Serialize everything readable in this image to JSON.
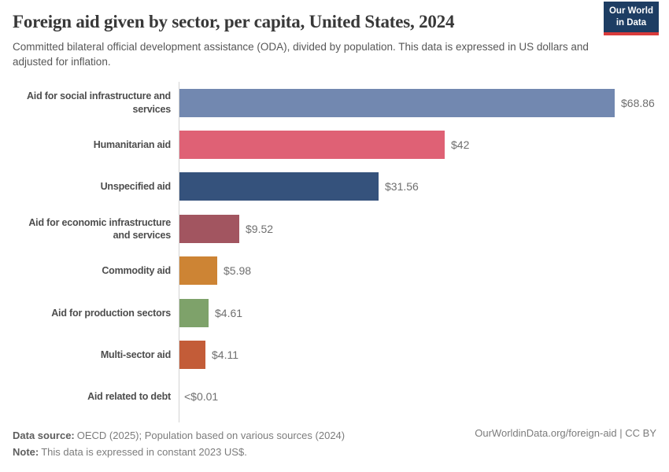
{
  "header": {
    "title": "Foreign aid given by sector, per capita, United States, 2024",
    "subtitle": "Committed bilateral official development assistance (ODA), divided by population. This data is expressed in US dollars and adjusted for inflation.",
    "logo": {
      "line1": "Our World",
      "line2": "in Data",
      "bg_color": "#1d3d63",
      "accent_color": "#d93b3b"
    }
  },
  "chart_data": {
    "type": "bar",
    "orientation": "horizontal",
    "title": "Foreign aid given by sector, per capita, United States, 2024",
    "unit": "US dollars per capita (constant 2023 US$)",
    "categories": [
      "Aid for social infrastructure and services",
      "Humanitarian aid",
      "Unspecified aid",
      "Aid for economic infrastructure and services",
      "Commodity aid",
      "Aid for production sectors",
      "Multi-sector aid",
      "Aid related to debt"
    ],
    "values": [
      68.86,
      42,
      31.56,
      9.52,
      5.98,
      4.61,
      4.11,
      0.01
    ],
    "value_labels": [
      "$68.86",
      "$42",
      "$31.56",
      "$9.52",
      "$5.98",
      "$4.61",
      "$4.11",
      "<$0.01"
    ],
    "bar_colors": [
      "#7288b0",
      "#df6175",
      "#35527c",
      "#a25560",
      "#cd8434",
      "#7ea26a",
      "#c35c38",
      "#c35c38"
    ],
    "xlim": [
      0,
      75
    ],
    "grid": false,
    "legend": "none",
    "axis_color": "#d3d3d3"
  },
  "footer": {
    "source_label": "Data source:",
    "source_text": "OECD (2025); Population based on various sources (2024)",
    "note_label": "Note:",
    "note_text": "This data is expressed in constant 2023 US$.",
    "link": "OurWorldinData.org/foreign-aid | CC BY"
  }
}
